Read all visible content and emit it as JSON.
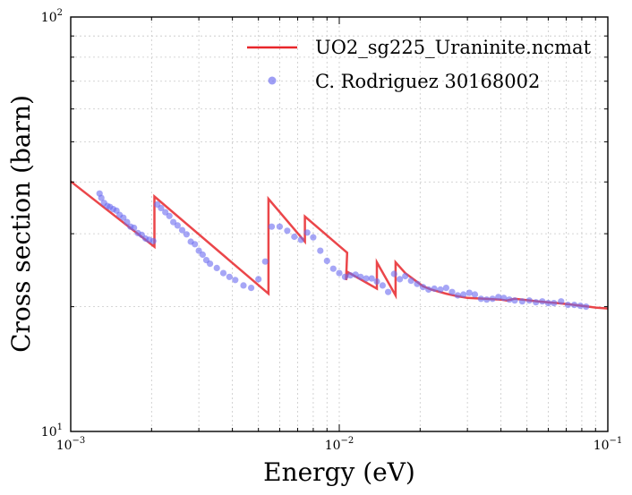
{
  "chart_data": {
    "type": "line",
    "x_scale": "log",
    "y_scale": "log",
    "xlabel": "Energy (eV)",
    "ylabel": "Cross section (barn)",
    "xlim": [
      0.001,
      0.1
    ],
    "ylim": [
      10,
      100
    ],
    "x_ticks": [
      {
        "value": 0.001,
        "base": "10",
        "exp": "−3"
      },
      {
        "value": 0.01,
        "base": "10",
        "exp": "−2"
      },
      {
        "value": 0.1,
        "base": "10",
        "exp": "−1"
      }
    ],
    "y_ticks": [
      {
        "value": 10,
        "base": "10",
        "exp": "1"
      },
      {
        "value": 100,
        "base": "10",
        "exp": "2"
      }
    ],
    "grid": true,
    "legend_position": "top-right",
    "colors": {
      "line": "#e8262a",
      "points": "#6a6af0"
    },
    "series": [
      {
        "name": "UO2_sg225_Uraninite.ncmat",
        "kind": "line",
        "x": [
          0.001,
          0.00205,
          0.00205,
          0.00545,
          0.00545,
          0.00745,
          0.00745,
          0.0107,
          0.0107,
          0.0106,
          0.0108,
          0.0138,
          0.0138,
          0.0162,
          0.0162,
          0.0176,
          0.0176,
          0.0205,
          0.0205,
          0.022,
          0.022,
          0.025,
          0.025,
          0.0275,
          0.0275,
          0.03,
          0.03,
          0.04,
          0.04,
          0.042,
          0.042,
          0.045,
          0.045,
          0.055,
          0.06,
          0.065,
          0.07,
          0.075,
          0.08,
          0.085,
          0.09,
          0.1
        ],
        "y": [
          40.1,
          27.9,
          36.9,
          21.5,
          36.4,
          28.7,
          33.0,
          27.0,
          27.0,
          23.2,
          24.2,
          22.1,
          25.6,
          21.3,
          25.6,
          24.1,
          24.1,
          22.4,
          22.4,
          22.0,
          22.0,
          21.5,
          21.5,
          21.2,
          21.2,
          21.0,
          21.0,
          20.8,
          20.8,
          20.7,
          20.7,
          20.9,
          20.9,
          20.6,
          20.5,
          20.4,
          20.3,
          20.2,
          20.1,
          20.0,
          19.9,
          19.8
        ]
      },
      {
        "name": "C. Rodriguez 30168002",
        "kind": "scatter",
        "x": [
          0.00128,
          0.0013,
          0.00133,
          0.00137,
          0.0014,
          0.00144,
          0.00148,
          0.00152,
          0.00157,
          0.00162,
          0.00167,
          0.00172,
          0.00178,
          0.00184,
          0.0019,
          0.00196,
          0.00203,
          0.0021,
          0.00217,
          0.00225,
          0.00233,
          0.00241,
          0.0025,
          0.0026,
          0.0027,
          0.0028,
          0.0029,
          0.003,
          0.0031,
          0.0032,
          0.0033,
          0.0035,
          0.0037,
          0.0039,
          0.0041,
          0.0044,
          0.0047,
          0.005,
          0.0053,
          0.0056,
          0.006,
          0.0064,
          0.0068,
          0.0072,
          0.0076,
          0.008,
          0.0085,
          0.009,
          0.0095,
          0.01,
          0.0105,
          0.011,
          0.0115,
          0.012,
          0.0126,
          0.0132,
          0.0138,
          0.0145,
          0.0152,
          0.016,
          0.0168,
          0.0176,
          0.0185,
          0.0195,
          0.0205,
          0.0215,
          0.0226,
          0.0238,
          0.025,
          0.0263,
          0.0276,
          0.029,
          0.0305,
          0.032,
          0.0337,
          0.0354,
          0.0372,
          0.0391,
          0.041,
          0.043,
          0.045,
          0.048,
          0.051,
          0.054,
          0.057,
          0.06,
          0.063,
          0.067,
          0.071,
          0.075,
          0.079,
          0.083
        ],
        "y": [
          37.5,
          36.6,
          35.6,
          35.0,
          34.8,
          34.4,
          34.1,
          33.3,
          32.8,
          32.0,
          31.2,
          31.0,
          30.1,
          29.8,
          29.2,
          29.0,
          28.8,
          35.3,
          34.6,
          33.8,
          33.1,
          32.0,
          31.4,
          30.6,
          29.9,
          28.7,
          28.3,
          27.3,
          26.7,
          25.9,
          25.4,
          24.8,
          24.1,
          23.6,
          23.2,
          22.5,
          22.2,
          23.3,
          25.7,
          31.2,
          31.2,
          30.5,
          29.5,
          29.0,
          30.2,
          29.4,
          27.3,
          25.8,
          24.7,
          24.1,
          23.6,
          23.8,
          23.9,
          23.6,
          23.4,
          23.4,
          23.0,
          22.5,
          21.7,
          24.0,
          23.3,
          23.7,
          23.1,
          22.7,
          22.3,
          22.0,
          22.1,
          22.0,
          22.2,
          21.7,
          21.3,
          21.4,
          21.6,
          21.4,
          20.9,
          20.8,
          20.9,
          21.1,
          21.0,
          20.8,
          20.7,
          20.6,
          20.7,
          20.5,
          20.6,
          20.4,
          20.4,
          20.6,
          20.2,
          20.2,
          20.1,
          20.0
        ]
      }
    ]
  }
}
